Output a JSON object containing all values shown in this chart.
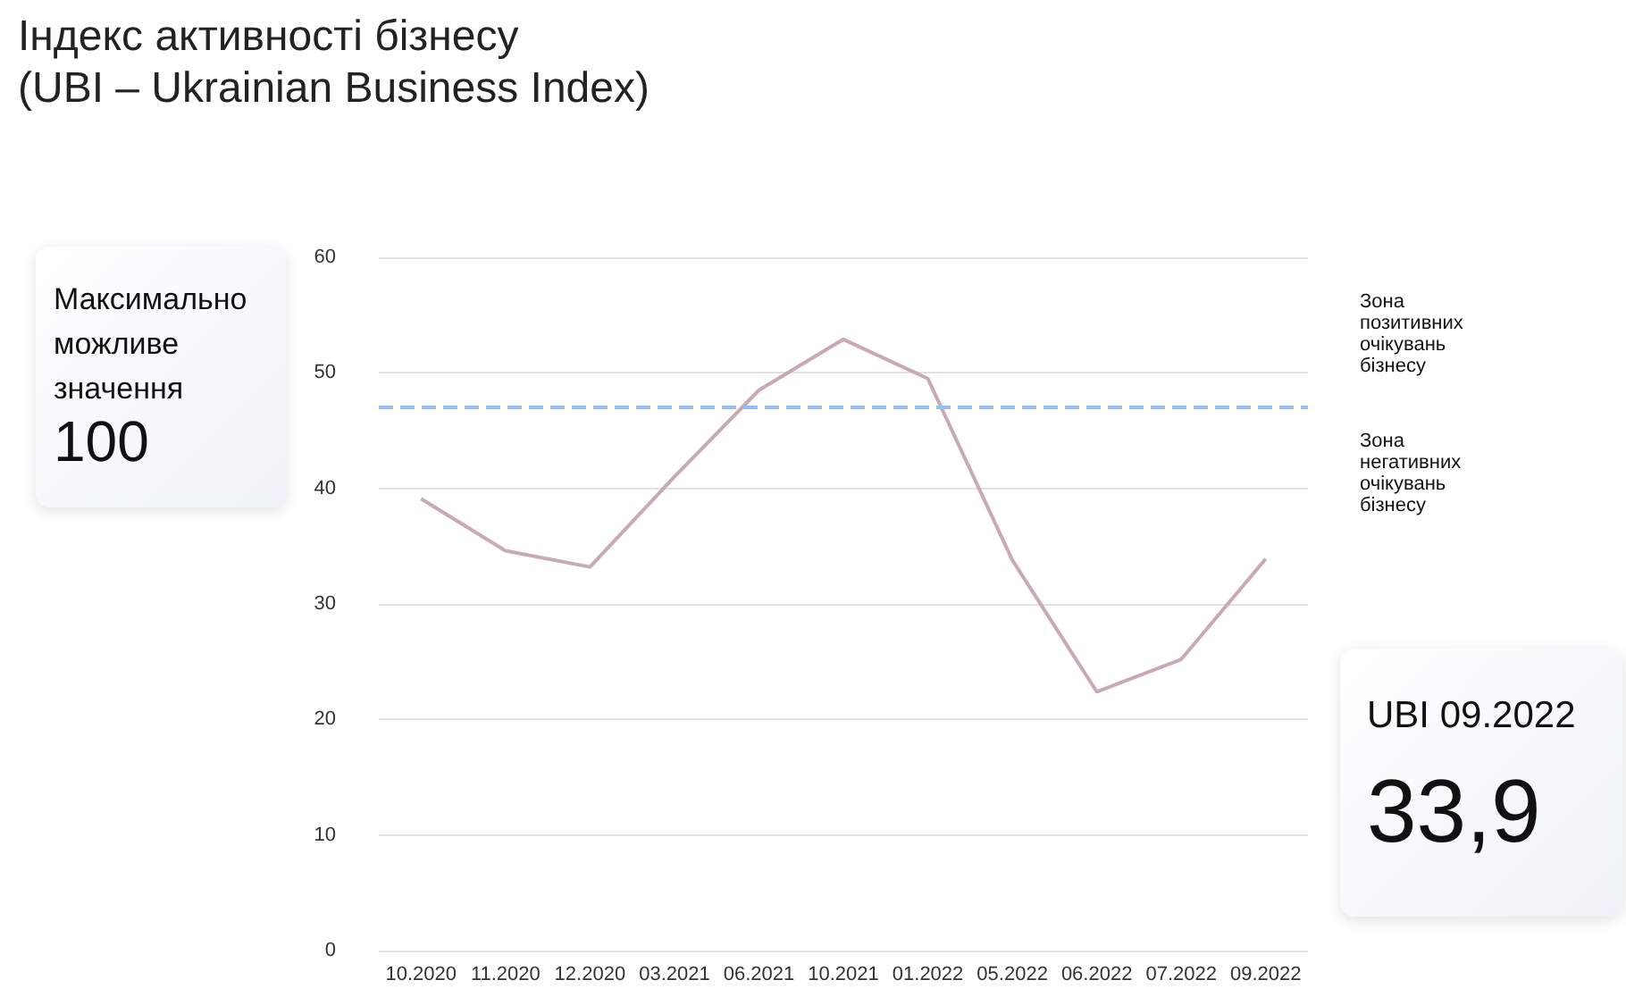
{
  "chart_data": {
    "type": "line",
    "title": "Індекс активності бізнесу\n(UBI – Ukrainian Business Index)",
    "categories": [
      "10.2020",
      "11.2020",
      "12.2020",
      "03.2021",
      "06.2021",
      "10.2021",
      "01.2022",
      "05.2022",
      "06.2022",
      "07.2022",
      "09.2022"
    ],
    "series": [
      {
        "color": "#c9a9b4",
        "values": [
          39.1,
          34.6,
          33.2,
          41.0,
          48.5,
          52.9,
          49.5,
          33.8,
          22.4,
          25.2,
          33.9
        ]
      }
    ],
    "ylim": [
      0,
      60
    ],
    "yticks": [
      0,
      10,
      20,
      30,
      40,
      50,
      60
    ],
    "grid": "y",
    "marker": "none",
    "line_style": "solid",
    "ref_lines": [
      {
        "axis": "y",
        "value": 47,
        "label": null,
        "color": "#8fbff5",
        "line_style": "dashed"
      }
    ],
    "annotations": [
      "Зона позитивних очікувань бізнесу",
      "Зона негативних очікувань бізнесу",
      "Максимально можливе значення",
      "100",
      "UBI 09.2022",
      "33,9"
    ]
  }
}
